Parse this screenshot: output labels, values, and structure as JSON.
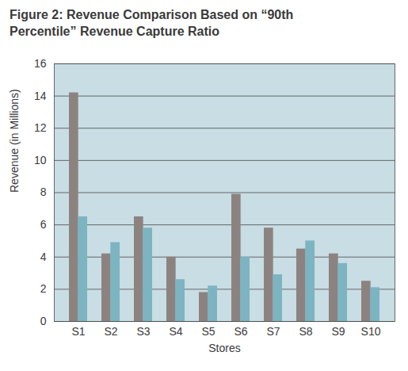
{
  "chart_data": {
    "type": "bar",
    "title": "Figure 2: Revenue Comparison Based on “90th Percentile” Revenue Capture Ratio",
    "xlabel": "Stores",
    "ylabel": "Revenue (in Millions)",
    "categories": [
      "S1",
      "S2",
      "S3",
      "S4",
      "S5",
      "S6",
      "S7",
      "S8",
      "S9",
      "S10"
    ],
    "series": [
      {
        "color": "#8c8381",
        "values": [
          14.2,
          4.2,
          6.5,
          4.0,
          1.8,
          7.9,
          5.8,
          4.5,
          4.2,
          2.5
        ]
      },
      {
        "color": "#7cb4c2",
        "values": [
          6.5,
          4.9,
          5.8,
          2.6,
          2.2,
          4.0,
          2.9,
          5.0,
          3.6,
          2.1
        ]
      }
    ],
    "ylim": [
      0,
      16
    ],
    "yticks": [
      0,
      2,
      4,
      6,
      8,
      10,
      12,
      14,
      16
    ],
    "grid": true
  }
}
